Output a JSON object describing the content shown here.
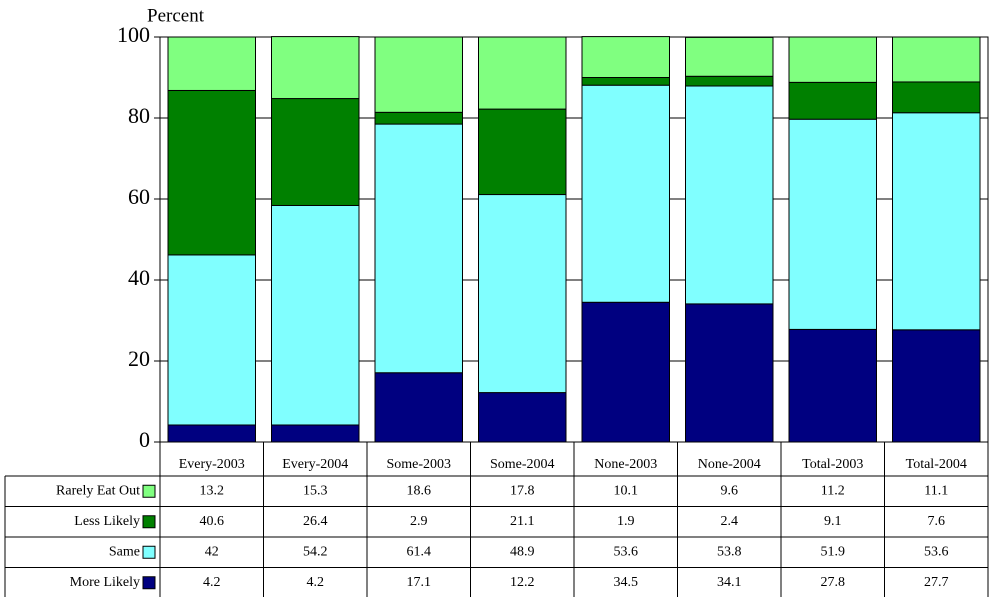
{
  "chart_data": {
    "type": "stacked-bar",
    "y_label": "Percent",
    "categories": [
      "Every-2003",
      "Every-2004",
      "Some-2003",
      "Some-2004",
      "None-2003",
      "None-2004",
      "Total-2003",
      "Total-2004"
    ],
    "series": [
      {
        "name": "More Likely",
        "color": "#000080",
        "values": [
          4.2,
          4.2,
          17.1,
          12.2,
          34.5,
          34.1,
          27.8,
          27.7
        ]
      },
      {
        "name": "Same",
        "color": "#80ffff",
        "values": [
          42,
          54.2,
          61.4,
          48.9,
          53.6,
          53.8,
          51.9,
          53.6
        ]
      },
      {
        "name": "Less Likely",
        "color": "#008000",
        "values": [
          40.6,
          26.4,
          2.9,
          21.1,
          1.9,
          2.4,
          9.1,
          7.6
        ]
      },
      {
        "name": "Rarely Eat Out",
        "color": "#80ff80",
        "values": [
          13.2,
          15.3,
          18.6,
          17.8,
          10.1,
          9.6,
          11.2,
          11.1
        ]
      }
    ],
    "ylim": [
      0,
      100
    ],
    "yticks": [
      0,
      20,
      40,
      60,
      80,
      100
    ],
    "grid": true
  }
}
